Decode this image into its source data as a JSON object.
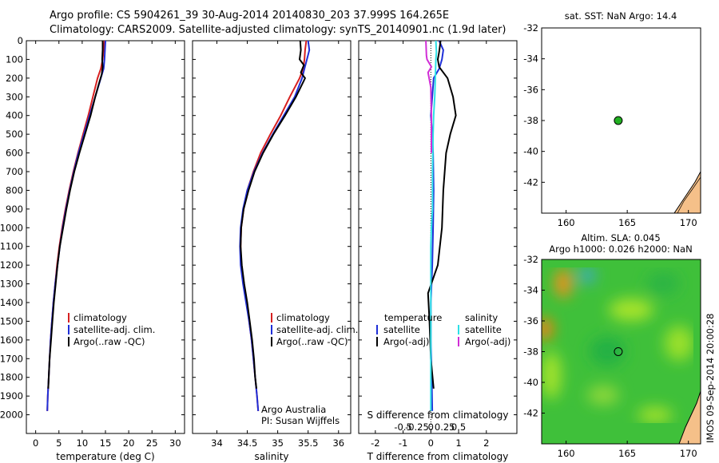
{
  "header": {
    "line1": "Argo profile: CS 5904261_39 30-Aug-2014 20140830_203 37.999S 164.265E",
    "line2": "Climatology: CARS2009. Satellite-adjusted climatology: synTS_20140901.nc (1.9d later)"
  },
  "colors": {
    "climatology": "#d62020",
    "satellite": "#1f2fd8",
    "argo": "#000000",
    "sal_satellite": "#2ee0e6",
    "sal_argo": "#d12ed6",
    "marker": "#22b022",
    "land": "#f5c089"
  },
  "legend": {
    "climatology": "climatology",
    "satellite": "satellite-adj. clim.",
    "argo": "Argo(..raw -QC)"
  },
  "credits": {
    "line1": "Argo Australia",
    "line2": "PI: Susan Wijffels"
  },
  "diff_legend": {
    "temp_title": "temperature",
    "temp_sat": "satellite",
    "temp_argo": "Argo(-adj)",
    "sal_title": "salinity",
    "sal_sat": "satellite",
    "sal_argo": "Argo(-adj)"
  },
  "sst_title": "sat. SST: NaN Argo: 14.4",
  "sla_title1": "Altim. SLA: 0.045",
  "sla_title2": "Argo h1000: 0.026 h2000: NaN",
  "footer_vertical": "IMOS 09-Sep-2014 20:00:28",
  "chart_data": [
    {
      "id": "temperature",
      "type": "line",
      "xlabel": "temperature (deg C)",
      "xlim": [
        -2,
        32
      ],
      "xticks": [
        0,
        5,
        10,
        15,
        20,
        25,
        30
      ],
      "ylim": [
        2100,
        0
      ],
      "yticks": [
        0,
        100,
        200,
        300,
        400,
        500,
        600,
        700,
        800,
        900,
        1000,
        1100,
        1200,
        1300,
        1400,
        1500,
        1600,
        1700,
        1800,
        1900,
        2000
      ],
      "series": [
        {
          "name": "climatology",
          "role": "climatology",
          "points": [
            [
              14.8,
              0
            ],
            [
              14.6,
              50
            ],
            [
              14.4,
              100
            ],
            [
              14.0,
              150
            ],
            [
              13.3,
              200
            ],
            [
              12.3,
              300
            ],
            [
              11.3,
              400
            ],
            [
              10.2,
              500
            ],
            [
              9.1,
              600
            ],
            [
              8.1,
              700
            ],
            [
              7.2,
              800
            ],
            [
              6.4,
              900
            ],
            [
              5.7,
              1000
            ],
            [
              5.1,
              1100
            ],
            [
              4.6,
              1200
            ],
            [
              4.2,
              1300
            ],
            [
              3.8,
              1400
            ],
            [
              3.5,
              1500
            ],
            [
              3.2,
              1600
            ],
            [
              3.0,
              1700
            ],
            [
              2.8,
              1800
            ],
            [
              2.6,
              1900
            ],
            [
              2.5,
              1980
            ]
          ]
        },
        {
          "name": "satellite-adj. clim.",
          "role": "satellite",
          "points": [
            [
              15.0,
              0
            ],
            [
              14.9,
              50
            ],
            [
              14.8,
              100
            ],
            [
              14.6,
              150
            ],
            [
              14.0,
              200
            ],
            [
              12.8,
              300
            ],
            [
              11.6,
              400
            ],
            [
              10.4,
              500
            ],
            [
              9.2,
              600
            ],
            [
              8.2,
              700
            ],
            [
              7.3,
              800
            ],
            [
              6.5,
              900
            ],
            [
              5.8,
              1000
            ],
            [
              5.2,
              1100
            ],
            [
              4.7,
              1200
            ],
            [
              4.2,
              1300
            ],
            [
              3.8,
              1400
            ],
            [
              3.5,
              1500
            ],
            [
              3.2,
              1600
            ],
            [
              3.0,
              1700
            ],
            [
              2.8,
              1800
            ],
            [
              2.6,
              1900
            ],
            [
              2.5,
              1980
            ]
          ]
        },
        {
          "name": "Argo(..raw -QC)",
          "role": "argo",
          "points": [
            [
              14.4,
              0
            ],
            [
              14.4,
              50
            ],
            [
              14.3,
              100
            ],
            [
              14.4,
              140
            ],
            [
              14.2,
              180
            ],
            [
              13.6,
              230
            ],
            [
              12.8,
              300
            ],
            [
              11.8,
              400
            ],
            [
              10.6,
              500
            ],
            [
              9.4,
              600
            ],
            [
              8.3,
              700
            ],
            [
              7.4,
              800
            ],
            [
              6.6,
              900
            ],
            [
              5.9,
              1000
            ],
            [
              5.2,
              1100
            ],
            [
              4.7,
              1200
            ],
            [
              4.3,
              1300
            ],
            [
              3.9,
              1400
            ],
            [
              3.6,
              1500
            ],
            [
              3.3,
              1600
            ],
            [
              3.0,
              1700
            ],
            [
              2.8,
              1800
            ],
            [
              2.7,
              1860
            ]
          ]
        }
      ]
    },
    {
      "id": "salinity",
      "type": "line",
      "xlabel": "salinity",
      "xlim": [
        33.6,
        36.2
      ],
      "xticks": [
        34,
        34.5,
        35,
        35.5,
        36
      ],
      "ylim": [
        2100,
        0
      ],
      "series": [
        {
          "name": "climatology",
          "role": "climatology",
          "points": [
            [
              35.47,
              0
            ],
            [
              35.45,
              50
            ],
            [
              35.44,
              100
            ],
            [
              35.42,
              150
            ],
            [
              35.36,
              200
            ],
            [
              35.2,
              300
            ],
            [
              35.05,
              400
            ],
            [
              34.88,
              500
            ],
            [
              34.72,
              600
            ],
            [
              34.6,
              700
            ],
            [
              34.5,
              800
            ],
            [
              34.44,
              900
            ],
            [
              34.4,
              1000
            ],
            [
              34.39,
              1100
            ],
            [
              34.4,
              1200
            ],
            [
              34.44,
              1300
            ],
            [
              34.49,
              1400
            ],
            [
              34.53,
              1500
            ],
            [
              34.57,
              1600
            ],
            [
              34.6,
              1700
            ],
            [
              34.63,
              1800
            ],
            [
              34.66,
              1900
            ],
            [
              34.68,
              1980
            ]
          ]
        },
        {
          "name": "satellite-adj. clim.",
          "role": "satellite",
          "points": [
            [
              35.5,
              0
            ],
            [
              35.52,
              50
            ],
            [
              35.48,
              100
            ],
            [
              35.44,
              150
            ],
            [
              35.4,
              200
            ],
            [
              35.28,
              300
            ],
            [
              35.1,
              400
            ],
            [
              34.92,
              500
            ],
            [
              34.75,
              600
            ],
            [
              34.61,
              700
            ],
            [
              34.5,
              800
            ],
            [
              34.43,
              900
            ],
            [
              34.39,
              1000
            ],
            [
              34.38,
              1100
            ],
            [
              34.39,
              1200
            ],
            [
              34.43,
              1300
            ],
            [
              34.48,
              1400
            ],
            [
              34.53,
              1500
            ],
            [
              34.57,
              1600
            ],
            [
              34.6,
              1700
            ],
            [
              34.63,
              1800
            ],
            [
              34.66,
              1900
            ],
            [
              34.68,
              1980
            ]
          ]
        },
        {
          "name": "Argo(..raw -QC)",
          "role": "argo",
          "points": [
            [
              35.37,
              0
            ],
            [
              35.38,
              50
            ],
            [
              35.36,
              100
            ],
            [
              35.43,
              130
            ],
            [
              35.38,
              170
            ],
            [
              35.45,
              200
            ],
            [
              35.3,
              300
            ],
            [
              35.12,
              400
            ],
            [
              34.93,
              500
            ],
            [
              34.76,
              600
            ],
            [
              34.62,
              700
            ],
            [
              34.52,
              800
            ],
            [
              34.44,
              900
            ],
            [
              34.4,
              1000
            ],
            [
              34.39,
              1100
            ],
            [
              34.41,
              1200
            ],
            [
              34.45,
              1300
            ],
            [
              34.5,
              1400
            ],
            [
              34.54,
              1500
            ],
            [
              34.58,
              1600
            ],
            [
              34.61,
              1700
            ],
            [
              34.63,
              1800
            ],
            [
              34.65,
              1860
            ]
          ]
        }
      ]
    },
    {
      "id": "difference",
      "type": "line",
      "xlabel_bottom": "T difference from climatology",
      "xlabel_top": "S difference from climatology",
      "xlim": [
        -2.6,
        3.1
      ],
      "xticks": [
        -2,
        -1,
        0,
        1,
        2
      ],
      "sticks": [
        -0.5,
        -0.25,
        0,
        0.25,
        0.5
      ],
      "ylim": [
        2100,
        0
      ],
      "series": [
        {
          "name": "temperature satellite",
          "role": "satellite",
          "points": [
            [
              0.3,
              0
            ],
            [
              0.45,
              50
            ],
            [
              0.4,
              100
            ],
            [
              0.3,
              150
            ],
            [
              0.1,
              200
            ],
            [
              0.05,
              300
            ],
            [
              0.0,
              400
            ],
            [
              0.05,
              500
            ],
            [
              0.08,
              600
            ],
            [
              0.1,
              800
            ],
            [
              0.08,
              1000
            ],
            [
              0.05,
              1200
            ],
            [
              0.0,
              1400
            ],
            [
              0.0,
              1600
            ],
            [
              0.03,
              1800
            ],
            [
              0.05,
              1980
            ]
          ]
        },
        {
          "name": "temperature Argo(-adj)",
          "role": "argo",
          "points": [
            [
              0.35,
              0
            ],
            [
              0.3,
              60
            ],
            [
              0.25,
              100
            ],
            [
              0.3,
              140
            ],
            [
              0.6,
              200
            ],
            [
              0.8,
              300
            ],
            [
              0.9,
              400
            ],
            [
              0.7,
              500
            ],
            [
              0.55,
              600
            ],
            [
              0.45,
              800
            ],
            [
              0.4,
              1000
            ],
            [
              0.25,
              1200
            ],
            [
              -0.1,
              1350
            ],
            [
              -0.05,
              1500
            ],
            [
              0.0,
              1700
            ],
            [
              0.1,
              1860
            ]
          ]
        },
        {
          "name": "salinity satellite",
          "role": "sal_satellite",
          "points": [
            [
              0.09,
              0
            ],
            [
              0.1,
              60
            ],
            [
              0.09,
              100
            ],
            [
              0.08,
              200
            ],
            [
              0.07,
              300
            ],
            [
              0.05,
              400
            ],
            [
              0.04,
              500
            ],
            [
              0.03,
              700
            ],
            [
              0.03,
              900
            ],
            [
              0.01,
              1000
            ],
            [
              0.0,
              1100
            ],
            [
              0.0,
              1200
            ],
            [
              0.0,
              1400
            ],
            [
              0.0,
              1600
            ],
            [
              0.0,
              1800
            ],
            [
              0.0,
              1980
            ]
          ]
        },
        {
          "name": "salinity Argo(-adj)",
          "role": "sal_argo",
          "points": [
            [
              -0.09,
              0
            ],
            [
              -0.08,
              80
            ],
            [
              -0.07,
              100
            ],
            [
              0.01,
              140
            ],
            [
              -0.05,
              170
            ],
            [
              0.0,
              250
            ],
            [
              0.01,
              400
            ],
            [
              0.01,
              600
            ]
          ]
        }
      ]
    },
    {
      "id": "sst_map",
      "type": "scatter",
      "xlim": [
        158,
        171
      ],
      "ylim": [
        -44,
        -32
      ],
      "xticks": [
        160,
        165,
        170
      ],
      "yticks": [
        -32,
        -34,
        -36,
        -38,
        -40,
        -42
      ],
      "points": [
        [
          164.265,
          -37.999
        ]
      ]
    },
    {
      "id": "sla_map",
      "type": "heatmap",
      "xlim": [
        158,
        171
      ],
      "ylim": [
        -44,
        -32
      ],
      "xticks": [
        160,
        165,
        170
      ],
      "yticks": [
        -32,
        -34,
        -36,
        -38,
        -40,
        -42
      ],
      "points": [
        [
          164.265,
          -37.999
        ]
      ]
    }
  ]
}
